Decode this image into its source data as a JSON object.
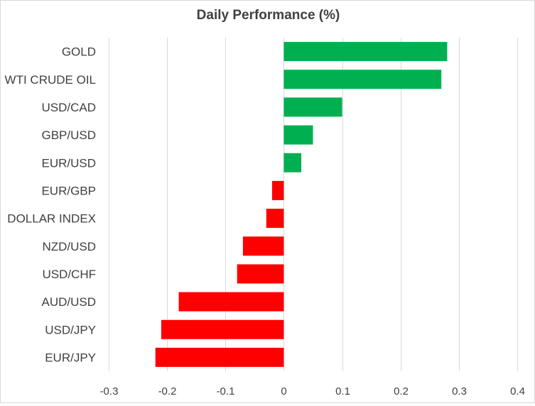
{
  "chart_data": {
    "type": "bar",
    "orientation": "horizontal",
    "title": "Daily Performance  (%)",
    "xlabel": "",
    "ylabel": "",
    "xlim": [
      -0.3,
      0.4
    ],
    "ticks": [
      "-0.3",
      "-0.2",
      "-0.1",
      "0",
      "0.1",
      "0.2",
      "0.3",
      "0.4"
    ],
    "tick_values": [
      -0.3,
      -0.2,
      -0.1,
      0,
      0.1,
      0.2,
      0.3,
      0.4
    ],
    "grid": true,
    "legend": "none",
    "categories": [
      "GOLD",
      "WTI CRUDE OIL",
      "USD/CAD",
      "GBP/USD",
      "EUR/USD",
      "EUR/GBP",
      "DOLLAR INDEX",
      "NZD/USD",
      "USD/CHF",
      "AUD/USD",
      "USD/JPY",
      "EUR/JPY"
    ],
    "values": [
      0.28,
      0.27,
      0.1,
      0.05,
      0.03,
      -0.02,
      -0.03,
      -0.07,
      -0.08,
      -0.18,
      -0.21,
      -0.22
    ],
    "colors": {
      "positive": "#00b050",
      "negative": "#ff0000",
      "grid": "#d9d9d9",
      "text": "#404040"
    }
  }
}
